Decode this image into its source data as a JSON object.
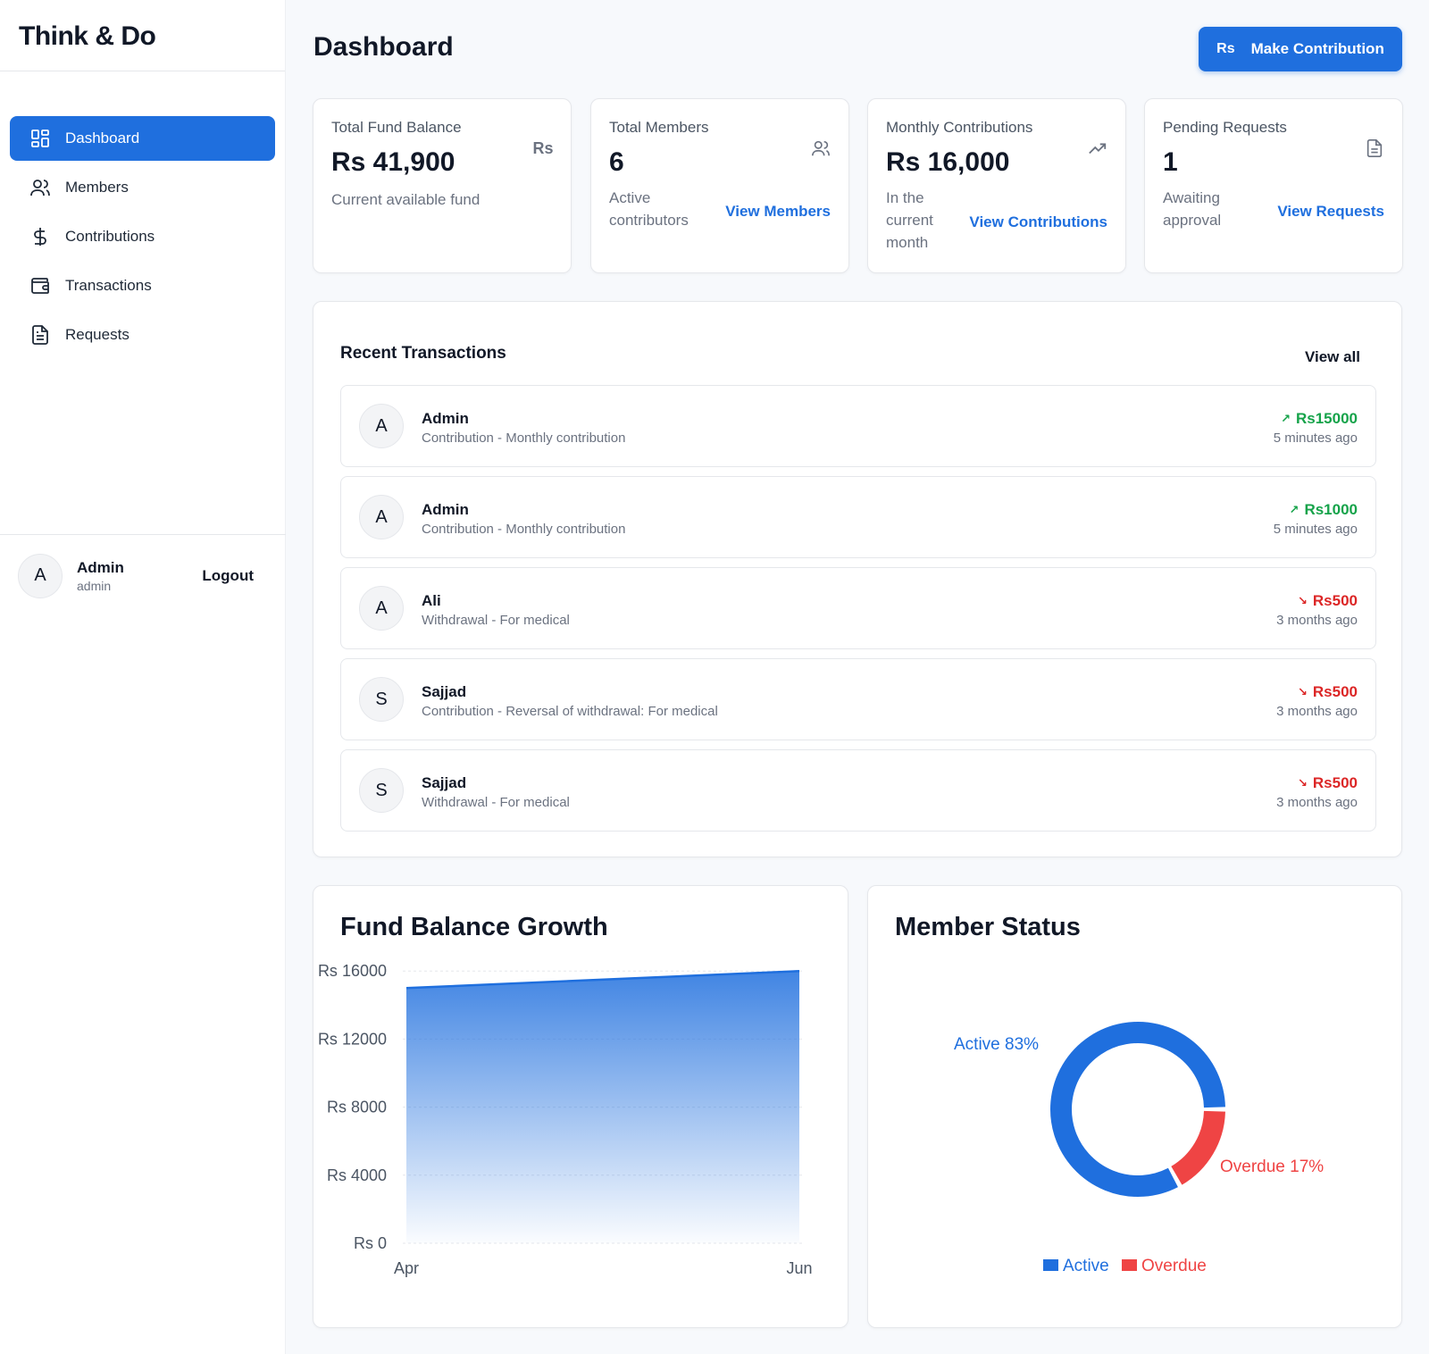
{
  "app": {
    "brand": "Think & Do"
  },
  "sidebar": {
    "items": [
      {
        "label": "Dashboard",
        "icon": "dashboard-icon",
        "active": true
      },
      {
        "label": "Members",
        "icon": "users-icon",
        "active": false
      },
      {
        "label": "Contributions",
        "icon": "dollar-icon",
        "active": false
      },
      {
        "label": "Transactions",
        "icon": "wallet-icon",
        "active": false
      },
      {
        "label": "Requests",
        "icon": "file-icon",
        "active": false
      }
    ],
    "user": {
      "initial": "A",
      "name": "Admin",
      "role": "admin",
      "logout_label": "Logout"
    }
  },
  "header": {
    "title": "Dashboard",
    "action_prefix": "Rs",
    "action_label": "Make Contribution"
  },
  "stats": [
    {
      "label": "Total Fund Balance",
      "value": "Rs 41,900",
      "desc": "Current available fund",
      "icon": "Rs",
      "link": ""
    },
    {
      "label": "Total Members",
      "value": "6",
      "desc_lines": [
        "Active",
        "contributors"
      ],
      "icon": "users-icon",
      "link": "View Members"
    },
    {
      "label": "Monthly Contributions",
      "value": "Rs 16,000",
      "desc_lines": [
        "In the",
        "current",
        "month"
      ],
      "icon": "trending-up-icon",
      "link": "View Contributions"
    },
    {
      "label": "Pending Requests",
      "value": "1",
      "desc_lines": [
        "Awaiting",
        "approval"
      ],
      "icon": "document-icon",
      "link": "View Requests"
    }
  ],
  "transactions": {
    "title": "Recent Transactions",
    "view_all": "View all",
    "rows": [
      {
        "initial": "A",
        "name": "Admin",
        "desc": "Contribution - Monthly contribution",
        "amount": "Rs15000",
        "direction": "in",
        "time": "5 minutes ago"
      },
      {
        "initial": "A",
        "name": "Admin",
        "desc": "Contribution - Monthly contribution",
        "amount": "Rs1000",
        "direction": "in",
        "time": "5 minutes ago"
      },
      {
        "initial": "A",
        "name": "Ali",
        "desc": "Withdrawal - For medical",
        "amount": "Rs500",
        "direction": "out",
        "time": "3 months ago"
      },
      {
        "initial": "S",
        "name": "Sajjad",
        "desc": "Contribution - Reversal of withdrawal: For medical",
        "amount": "Rs500",
        "direction": "out",
        "time": "3 months ago"
      },
      {
        "initial": "S",
        "name": "Sajjad",
        "desc": "Withdrawal - For medical",
        "amount": "Rs500",
        "direction": "out",
        "time": "3 months ago"
      }
    ]
  },
  "colors": {
    "accent": "#1f6fde",
    "positive": "#16a34a",
    "negative": "#dc2626",
    "overdue": "#ef4444"
  },
  "chart_data": [
    {
      "type": "area",
      "title": "Fund Balance Growth",
      "x": [
        "Apr",
        "Jun"
      ],
      "values": [
        15000,
        16000
      ],
      "ytick_labels": [
        "Rs 0",
        "Rs 4000",
        "Rs 8000",
        "Rs 12000",
        "Rs 16000"
      ],
      "ytick_values": [
        0,
        4000,
        8000,
        12000,
        16000
      ],
      "ylim": [
        0,
        16800
      ],
      "grid": true
    },
    {
      "type": "pie",
      "title": "Member Status",
      "categories": [
        "Active",
        "Overdue"
      ],
      "values": [
        83,
        17
      ],
      "slice_labels": [
        "Active 83%",
        "Overdue 17%"
      ],
      "colors": [
        "#1f6fde",
        "#ef4444"
      ],
      "legend": "bottom"
    }
  ]
}
